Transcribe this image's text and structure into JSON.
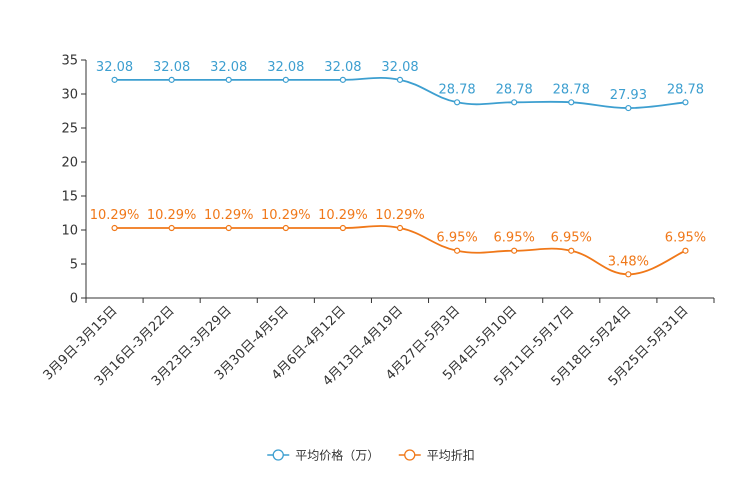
{
  "chart_data": {
    "type": "line",
    "title": "",
    "xlabel": "",
    "ylabel": "",
    "ylim": [
      0,
      35
    ],
    "yticks": [
      0,
      5,
      10,
      15,
      20,
      25,
      30,
      35
    ],
    "categories": [
      "3月9日-3月15日",
      "3月16日-3月22日",
      "3月23日-3月29日",
      "3月30日-4月5日",
      "4月6日-4月12日",
      "4月13日-4月19日",
      "4月27日-5月3日",
      "5月4日-5月10日",
      "5月11日-5月17日",
      "5月18日-5月24日",
      "5月25日-5月31日"
    ],
    "series": [
      {
        "name": "平均价格（万）",
        "color": "#3d9fd0",
        "values": [
          32.08,
          32.08,
          32.08,
          32.08,
          32.08,
          32.08,
          28.78,
          28.78,
          28.78,
          27.93,
          28.78
        ],
        "labels": [
          "32.08",
          "32.08",
          "32.08",
          "32.08",
          "32.08",
          "32.08",
          "28.78",
          "28.78",
          "28.78",
          "27.93",
          "28.78"
        ]
      },
      {
        "name": "平均折扣",
        "color": "#f07819",
        "values": [
          10.29,
          10.29,
          10.29,
          10.29,
          10.29,
          10.29,
          6.95,
          6.95,
          6.95,
          3.48,
          6.95
        ],
        "labels": [
          "10.29%",
          "10.29%",
          "10.29%",
          "10.29%",
          "10.29%",
          "10.29%",
          "6.95%",
          "6.95%",
          "6.95%",
          "3.48%",
          "6.95%"
        ]
      }
    ],
    "legend_position": "bottom-center",
    "grid": false
  }
}
